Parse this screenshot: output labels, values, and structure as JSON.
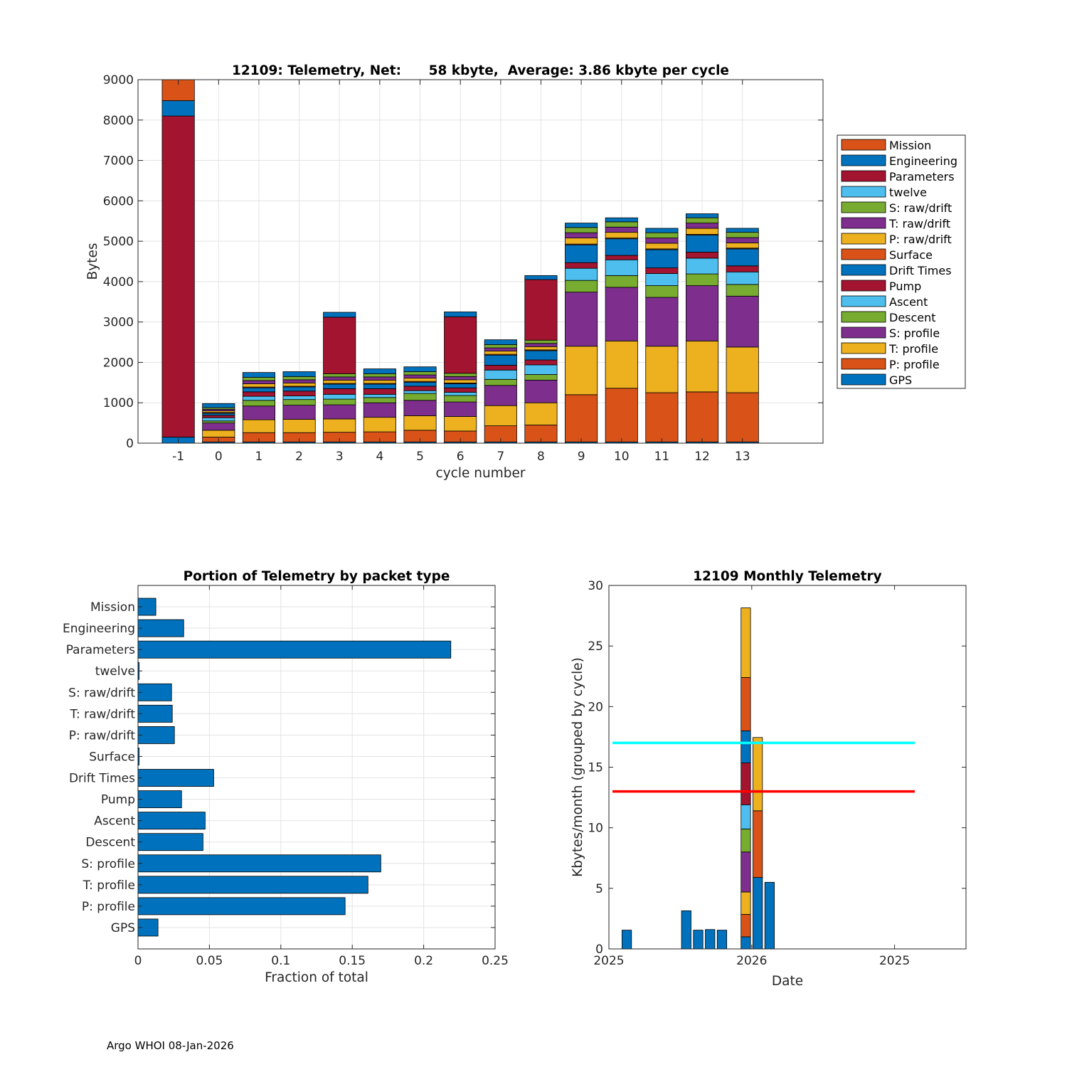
{
  "footer": "Argo WHOI 08-Jan-2026",
  "colors": {
    "orange": "#D95319",
    "blue": "#0072BD",
    "red": "#A2142F",
    "cyan": "#4DBEEE",
    "green": "#77AC30",
    "purple": "#7E2F8E",
    "yellow": "#EDB120",
    "line_cyan": "#00FFFF",
    "line_red": "#FF0000"
  },
  "chart_data": [
    {
      "type": "bar",
      "stacked": true,
      "title": "12109: Telemetry, Net:      58 kbyte,  Average: 3.86 kbyte per cycle",
      "xlabel": "cycle number",
      "ylabel": "Bytes",
      "ylim": [
        0,
        9000
      ],
      "yticks": [
        0,
        1000,
        2000,
        3000,
        4000,
        5000,
        6000,
        7000,
        8000,
        9000
      ],
      "xlim": [
        -2,
        15
      ],
      "categories": [
        "-1",
        "0",
        "1",
        "2",
        "3",
        "4",
        "5",
        "6",
        "7",
        "8",
        "9",
        "10",
        "11",
        "12",
        "13"
      ],
      "legend_position": "outside-right",
      "legend": [
        "Mission",
        "Engineering",
        "Parameters",
        "twelve",
        "S: raw/drift",
        "T: raw/drift",
        "P: raw/drift",
        "Surface",
        "Drift Times",
        "Pump",
        "Ascent",
        "Descent",
        "S: profile",
        "T: profile",
        "P: profile",
        "GPS"
      ],
      "legend_colors": [
        "#D95319",
        "#0072BD",
        "#A2142F",
        "#4DBEEE",
        "#77AC30",
        "#7E2F8E",
        "#EDB120",
        "#D95319",
        "#0072BD",
        "#A2142F",
        "#4DBEEE",
        "#77AC30",
        "#7E2F8E",
        "#EDB120",
        "#D95319",
        "#0072BD"
      ],
      "stack_order": [
        "GPS",
        "P: profile",
        "T: profile",
        "S: profile",
        "Descent",
        "Ascent",
        "Pump",
        "Drift Times",
        "Surface",
        "P: raw/drift",
        "T: raw/drift",
        "S: raw/drift",
        "twelve",
        "Parameters",
        "Engineering",
        "Mission"
      ],
      "series": [
        {
          "name": "GPS",
          "values": [
            150,
            30,
            30,
            30,
            30,
            30,
            30,
            30,
            30,
            30,
            30,
            30,
            30,
            30,
            30
          ]
        },
        {
          "name": "P: profile",
          "values": [
            0,
            120,
            230,
            230,
            240,
            250,
            290,
            270,
            400,
            420,
            1170,
            1330,
            1220,
            1240,
            1220
          ]
        },
        {
          "name": "T: profile",
          "values": [
            0,
            170,
            320,
            330,
            330,
            360,
            360,
            360,
            500,
            550,
            1200,
            1170,
            1150,
            1260,
            1130
          ]
        },
        {
          "name": "S: profile",
          "values": [
            0,
            180,
            340,
            350,
            350,
            360,
            380,
            360,
            500,
            560,
            1340,
            1330,
            1210,
            1370,
            1260
          ]
        },
        {
          "name": "Descent",
          "values": [
            0,
            50,
            140,
            140,
            140,
            130,
            170,
            160,
            150,
            140,
            290,
            290,
            290,
            290,
            290
          ]
        },
        {
          "name": "Ascent",
          "values": [
            0,
            80,
            100,
            90,
            120,
            80,
            70,
            80,
            230,
            240,
            300,
            390,
            300,
            390,
            310
          ]
        },
        {
          "name": "Pump",
          "values": [
            0,
            60,
            110,
            120,
            140,
            140,
            110,
            110,
            120,
            120,
            140,
            110,
            140,
            150,
            150
          ]
        },
        {
          "name": "Drift Times",
          "values": [
            0,
            50,
            100,
            100,
            110,
            110,
            100,
            100,
            250,
            230,
            440,
            410,
            450,
            420,
            420
          ]
        },
        {
          "name": "Surface",
          "values": [
            0,
            20,
            20,
            20,
            20,
            20,
            20,
            20,
            20,
            20,
            20,
            20,
            20,
            20,
            20
          ]
        },
        {
          "name": "P: raw/drift",
          "values": [
            0,
            40,
            80,
            80,
            80,
            80,
            80,
            80,
            80,
            80,
            150,
            140,
            140,
            150,
            130
          ]
        },
        {
          "name": "T: raw/drift",
          "values": [
            0,
            40,
            80,
            80,
            80,
            80,
            80,
            80,
            80,
            80,
            130,
            130,
            130,
            130,
            130
          ]
        },
        {
          "name": "S: raw/drift",
          "values": [
            0,
            40,
            80,
            80,
            80,
            80,
            80,
            80,
            80,
            80,
            130,
            130,
            130,
            130,
            130
          ]
        },
        {
          "name": "twelve",
          "values": [
            0,
            0,
            0,
            0,
            0,
            0,
            0,
            0,
            0,
            0,
            0,
            0,
            0,
            0,
            0
          ]
        },
        {
          "name": "Parameters",
          "values": [
            7950,
            0,
            0,
            0,
            1400,
            0,
            0,
            1400,
            0,
            1500,
            0,
            0,
            0,
            0,
            0
          ]
        },
        {
          "name": "Engineering",
          "values": [
            380,
            100,
            120,
            120,
            120,
            120,
            120,
            120,
            120,
            100,
            110,
            100,
            110,
            100,
            100
          ]
        },
        {
          "name": "Mission",
          "values": [
            520,
            0,
            0,
            0,
            0,
            0,
            0,
            0,
            0,
            0,
            0,
            0,
            0,
            0,
            0
          ]
        }
      ]
    },
    {
      "type": "bar",
      "orientation": "horizontal",
      "title": "Portion of Telemetry by packet type",
      "xlabel": "Fraction of total",
      "xlim": [
        0,
        0.25
      ],
      "xticks": [
        0,
        0.05,
        0.1,
        0.15,
        0.2,
        0.25
      ],
      "xtick_labels": [
        "0",
        "0.05",
        "0.1",
        "0.15",
        "0.2",
        "0.25"
      ],
      "categories": [
        "Mission",
        "Engineering",
        "Parameters",
        "twelve",
        "S: raw/drift",
        "T: raw/drift",
        "P: raw/drift",
        "Surface",
        "Drift Times",
        "Pump",
        "Ascent",
        "Descent",
        "S: profile",
        "T: profile",
        "P: profile",
        "GPS"
      ],
      "values": [
        0.0125,
        0.032,
        0.219,
        0.0008,
        0.0235,
        0.024,
        0.0255,
        0.0008,
        0.053,
        0.0305,
        0.047,
        0.0455,
        0.17,
        0.161,
        0.145,
        0.014
      ],
      "color": "#0072BD"
    },
    {
      "type": "bar",
      "stacked": true,
      "title": "12109 Monthly Telemetry",
      "xlabel": "Date",
      "ylabel": "Kbytes/month (grouped by cycle)",
      "ylim": [
        0,
        30
      ],
      "yticks": [
        0,
        5,
        10,
        15,
        20,
        25,
        30
      ],
      "xlim": [
        0,
        30
      ],
      "xticks": [
        0,
        12,
        24
      ],
      "xtick_labels": [
        "2025",
        "2026",
        "2025"
      ],
      "bars": [
        {
          "x": 1.5,
          "segments": [
            {
              "value": 1.55,
              "color": "#0072BD"
            }
          ]
        },
        {
          "x": 6.5,
          "segments": [
            {
              "value": 3.15,
              "color": "#0072BD"
            }
          ]
        },
        {
          "x": 7.5,
          "segments": [
            {
              "value": 1.55,
              "color": "#0072BD"
            }
          ]
        },
        {
          "x": 8.5,
          "segments": [
            {
              "value": 1.6,
              "color": "#0072BD"
            }
          ]
        },
        {
          "x": 9.5,
          "segments": [
            {
              "value": 1.55,
              "color": "#0072BD"
            }
          ]
        },
        {
          "x": 11.5,
          "segments": [
            {
              "value": 1.0,
              "color": "#0072BD"
            },
            {
              "value": 1.85,
              "color": "#D95319"
            },
            {
              "value": 1.85,
              "color": "#EDB120"
            },
            {
              "value": 3.3,
              "color": "#7E2F8E"
            },
            {
              "value": 1.9,
              "color": "#77AC30"
            },
            {
              "value": 2.0,
              "color": "#4DBEEE"
            },
            {
              "value": 3.45,
              "color": "#A2142F"
            },
            {
              "value": 2.65,
              "color": "#0072BD"
            },
            {
              "value": 4.4,
              "color": "#D95319"
            },
            {
              "value": 5.75,
              "color": "#EDB120"
            }
          ]
        },
        {
          "x": 12.5,
          "segments": [
            {
              "value": 5.9,
              "color": "#0072BD"
            },
            {
              "value": 5.5,
              "color": "#D95319"
            },
            {
              "value": 6.05,
              "color": "#EDB120"
            }
          ]
        },
        {
          "x": 13.5,
          "segments": [
            {
              "value": 5.5,
              "color": "#0072BD"
            }
          ]
        }
      ],
      "lines": [
        {
          "y": 17,
          "x_range": [
            0.3,
            25.7
          ],
          "color": "#00FFFF"
        },
        {
          "y": 13,
          "x_range": [
            0.3,
            25.7
          ],
          "color": "#FF0000"
        }
      ]
    }
  ]
}
